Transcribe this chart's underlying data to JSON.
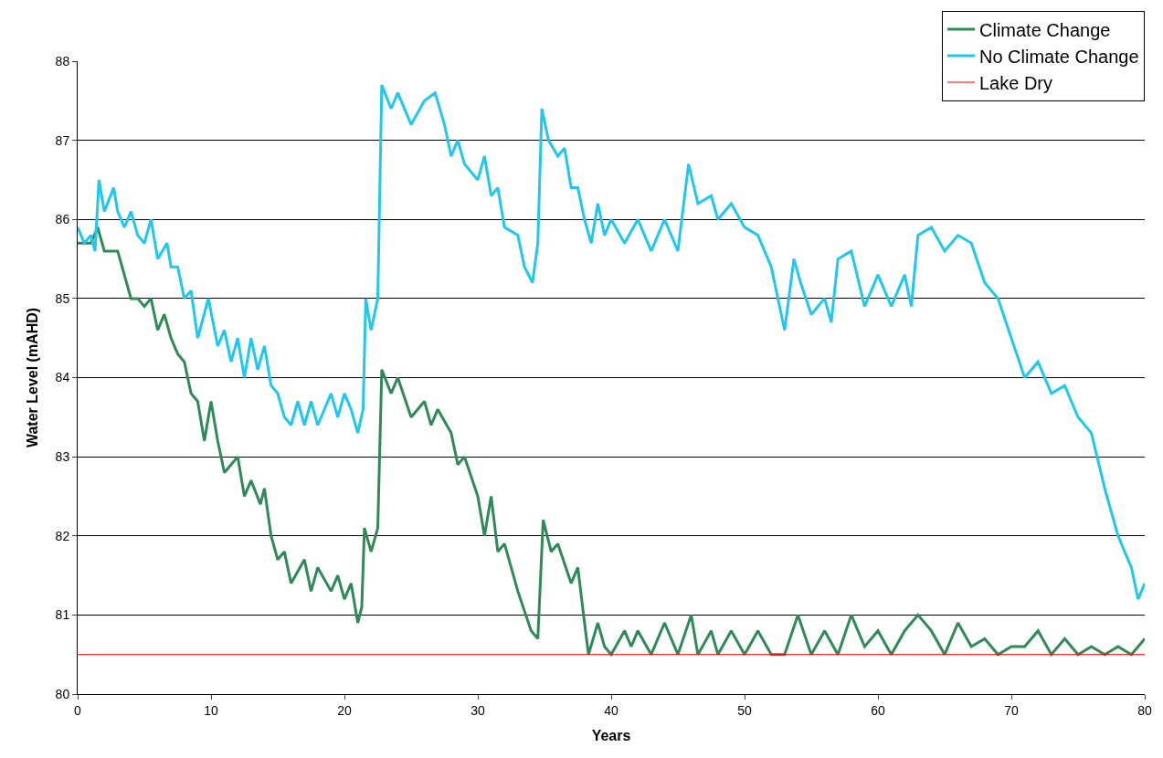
{
  "chart_data": {
    "type": "line",
    "xlabel": "Years",
    "ylabel": "Water Level (mAHD)",
    "xlim": [
      0,
      80
    ],
    "xticks": [
      0,
      10,
      20,
      30,
      40,
      50,
      60,
      70,
      80
    ],
    "ylim": [
      80,
      88
    ],
    "yticks": [
      80,
      81,
      82,
      83,
      84,
      85,
      86,
      87,
      88
    ],
    "grid": "y",
    "legend": "top right",
    "line_style": "solid",
    "series": [
      {
        "name": "Climate Change",
        "color": "#2e8b57",
        "x": [
          0,
          1,
          1.5,
          2,
          3,
          3.5,
          4,
          4.5,
          5,
          5.5,
          6,
          6.5,
          7,
          7.5,
          8,
          8.5,
          9,
          9.5,
          10,
          10.5,
          11,
          12,
          12.5,
          13,
          13.7,
          14,
          14.5,
          15,
          15.5,
          16,
          17,
          17.5,
          18,
          19,
          19.5,
          20,
          20.5,
          21,
          21.3,
          21.5,
          22,
          22.5,
          22.8,
          23.5,
          24,
          25,
          26,
          26.5,
          27,
          28,
          28.5,
          29,
          30,
          30.5,
          31,
          31.5,
          32,
          33,
          34,
          34.5,
          34.9,
          35.5,
          36,
          37,
          37.5,
          38,
          38.3,
          39,
          39.5,
          40,
          41,
          41.5,
          42,
          43,
          44,
          45,
          46,
          46.5,
          47.5,
          48,
          49,
          50,
          51,
          52,
          53,
          54,
          55,
          56,
          57,
          58,
          59,
          60,
          61,
          62,
          63,
          64,
          65,
          66,
          67,
          68,
          69,
          70,
          71,
          72,
          73,
          74,
          75,
          76,
          77,
          78,
          79,
          80
        ],
        "values": [
          85.7,
          85.7,
          85.9,
          85.6,
          85.6,
          85.3,
          85.0,
          85.0,
          84.9,
          85.0,
          84.6,
          84.8,
          84.5,
          84.3,
          84.2,
          83.8,
          83.7,
          83.2,
          83.7,
          83.2,
          82.8,
          83.0,
          82.5,
          82.7,
          82.4,
          82.6,
          82.0,
          81.7,
          81.8,
          81.4,
          81.7,
          81.3,
          81.6,
          81.3,
          81.5,
          81.2,
          81.4,
          80.9,
          81.1,
          82.1,
          81.8,
          82.1,
          84.1,
          83.8,
          84.0,
          83.5,
          83.7,
          83.4,
          83.6,
          83.3,
          82.9,
          83.0,
          82.5,
          82.0,
          82.5,
          81.8,
          81.9,
          81.3,
          80.8,
          80.7,
          82.2,
          81.8,
          81.9,
          81.4,
          81.6,
          80.9,
          80.5,
          80.9,
          80.6,
          80.5,
          80.8,
          80.6,
          80.8,
          80.5,
          80.9,
          80.5,
          81.0,
          80.5,
          80.8,
          80.5,
          80.8,
          80.5,
          80.8,
          80.5,
          80.5,
          81.0,
          80.5,
          80.8,
          80.5,
          81.0,
          80.6,
          80.8,
          80.5,
          80.8,
          81.0,
          80.8,
          80.5,
          80.9,
          80.6,
          80.7,
          80.5,
          80.6,
          80.6,
          80.8,
          80.5,
          80.7,
          80.5,
          80.6,
          80.5,
          80.6,
          80.5,
          80.7
        ]
      },
      {
        "name": "No Climate Change",
        "color": "#1ec8f0",
        "x": [
          0,
          0.5,
          1,
          1.3,
          1.6,
          2,
          2.7,
          3,
          3.5,
          4,
          4.5,
          5,
          5.5,
          6,
          6.7,
          7,
          7.5,
          8,
          8.5,
          9,
          9.8,
          10.5,
          11,
          11.5,
          12,
          12.5,
          13,
          13.5,
          14,
          14.5,
          15,
          15.5,
          16,
          16.5,
          17,
          17.5,
          18,
          19,
          19.5,
          20,
          20.5,
          21,
          21.4,
          21.6,
          22,
          22.5,
          22.8,
          23.5,
          24,
          25,
          26,
          26.8,
          27.5,
          28,
          28.5,
          29,
          30,
          30.5,
          31,
          31.5,
          32,
          33,
          33.5,
          34.1,
          34.5,
          34.8,
          35.3,
          36,
          36.5,
          37,
          37.5,
          38,
          38.5,
          39,
          39.5,
          40,
          41,
          42,
          43,
          44,
          45,
          45.8,
          46.5,
          47.5,
          48,
          49,
          50,
          51,
          52,
          53,
          53.7,
          54.2,
          55,
          56,
          56.5,
          57,
          58,
          59,
          60,
          61,
          62,
          62.5,
          63,
          64,
          65,
          66,
          67,
          68,
          69,
          70,
          71,
          72,
          73,
          74,
          75,
          76,
          77,
          78,
          79,
          79.5,
          80
        ],
        "values": [
          85.9,
          85.7,
          85.8,
          85.6,
          86.5,
          86.1,
          86.4,
          86.1,
          85.9,
          86.1,
          85.8,
          85.7,
          86.0,
          85.5,
          85.7,
          85.4,
          85.4,
          85.0,
          85.1,
          84.5,
          85.0,
          84.4,
          84.6,
          84.2,
          84.5,
          84.0,
          84.5,
          84.1,
          84.4,
          83.9,
          83.8,
          83.5,
          83.4,
          83.7,
          83.4,
          83.7,
          83.4,
          83.8,
          83.5,
          83.8,
          83.6,
          83.3,
          83.6,
          85.0,
          84.6,
          85.0,
          87.7,
          87.4,
          87.6,
          87.2,
          87.5,
          87.6,
          87.2,
          86.8,
          87.0,
          86.7,
          86.5,
          86.8,
          86.3,
          86.4,
          85.9,
          85.8,
          85.4,
          85.2,
          85.7,
          87.4,
          87.0,
          86.8,
          86.9,
          86.4,
          86.4,
          86.0,
          85.7,
          86.2,
          85.8,
          86.0,
          85.7,
          86.0,
          85.6,
          86.0,
          85.6,
          86.7,
          86.2,
          86.3,
          86.0,
          86.2,
          85.9,
          85.8,
          85.4,
          84.6,
          85.5,
          85.2,
          84.8,
          85.0,
          84.7,
          85.5,
          85.6,
          84.9,
          85.3,
          84.9,
          85.3,
          84.9,
          85.8,
          85.9,
          85.6,
          85.8,
          85.7,
          85.2,
          85.0,
          84.5,
          84.0,
          84.2,
          83.8,
          83.9,
          83.5,
          83.3,
          82.6,
          82.0,
          81.6,
          81.2,
          81.4
        ]
      }
    ],
    "ref_lines": [
      {
        "axis": "y",
        "value": 80.5,
        "label": "Lake Dry",
        "color": "#ff0000"
      }
    ]
  }
}
